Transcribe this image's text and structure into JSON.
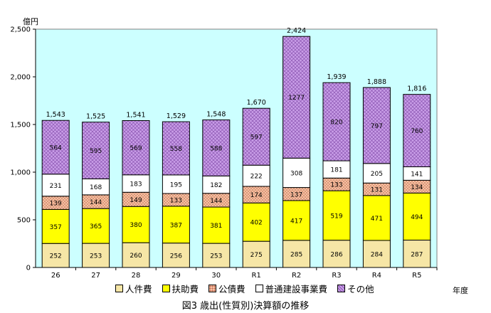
{
  "chart_data": {
    "type": "bar",
    "stacked": true,
    "title": "図3 歳出(性質別)決算額の推移",
    "ylabel": "億円",
    "xlabel": "年度",
    "ylim": [
      0,
      2500
    ],
    "yticks": [
      "0",
      "500",
      "1,000",
      "1,500",
      "2,000",
      "2,500"
    ],
    "categories": [
      "26",
      "27",
      "28",
      "29",
      "30",
      "R1",
      "R2",
      "R3",
      "R4",
      "R5"
    ],
    "series": [
      {
        "name": "人件費",
        "values": [
          252,
          253,
          260,
          256,
          253,
          275,
          285,
          286,
          284,
          287
        ]
      },
      {
        "name": "扶助費",
        "values": [
          357,
          365,
          380,
          387,
          381,
          402,
          417,
          519,
          471,
          494
        ]
      },
      {
        "name": "公債費",
        "values": [
          139,
          144,
          149,
          133,
          144,
          174,
          137,
          133,
          131,
          134
        ]
      },
      {
        "name": "普通建設事業費",
        "values": [
          231,
          168,
          183,
          195,
          182,
          222,
          308,
          181,
          205,
          141
        ]
      },
      {
        "name": "その他",
        "values": [
          564,
          595,
          569,
          558,
          588,
          597,
          1277,
          820,
          797,
          760
        ]
      }
    ],
    "totals": [
      "1,543",
      "1,525",
      "1,541",
      "1,529",
      "1,548",
      "1,670",
      "2,424",
      "1,939",
      "1,888",
      "1,816"
    ],
    "legend_position": "bottom",
    "grid": false,
    "colors": {
      "plot_background": "#ccffff",
      "人件費": "#f6e6a6",
      "扶助費": "#ffff00",
      "公債費": "#f5c2a1",
      "普通建設事業費": "#ffffff",
      "その他": "#c99ee8"
    }
  }
}
